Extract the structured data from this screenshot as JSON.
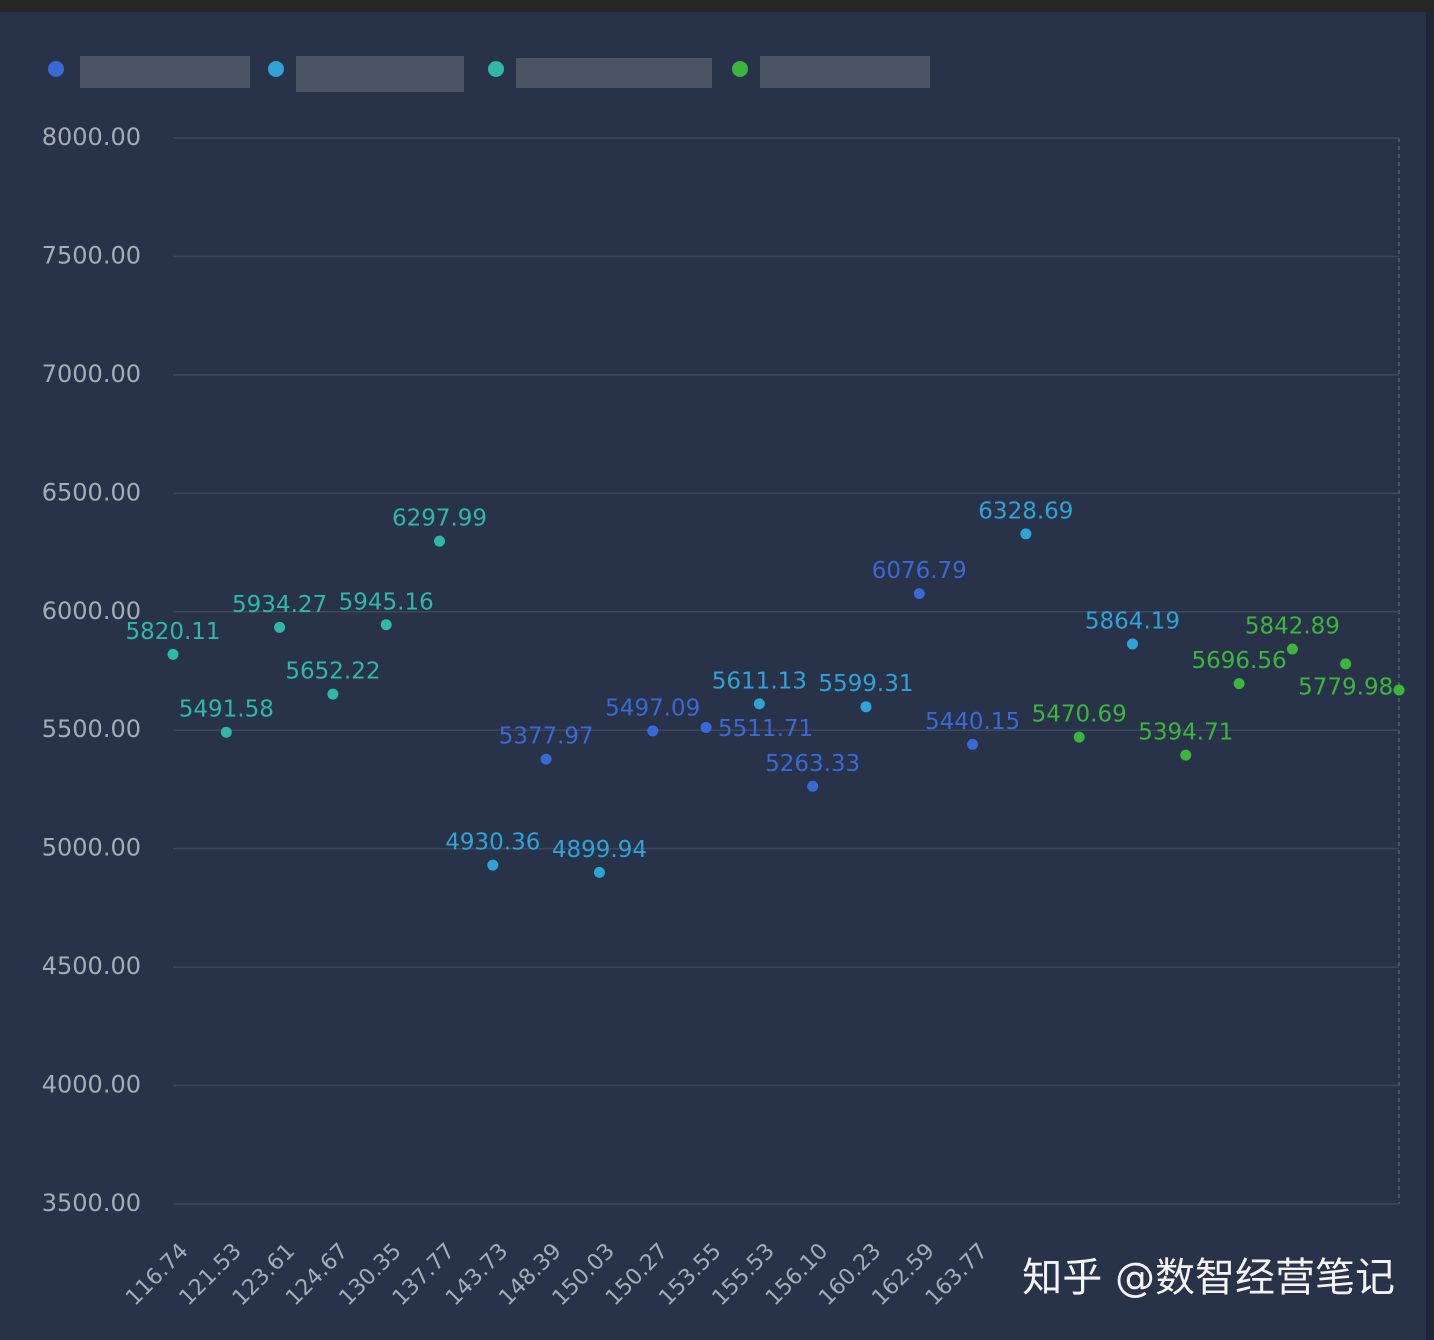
{
  "chart_data": {
    "type": "scatter",
    "categories": [
      "116.74",
      "121.53",
      "123.61",
      "124.67",
      "130.35",
      "137.77",
      "143.73",
      "148.39",
      "150.03",
      "150.27",
      "153.55",
      "155.53",
      "156.10",
      "160.23",
      "162.59",
      "163.77",
      null,
      null,
      null,
      null,
      null,
      null,
      null,
      null
    ],
    "series": [
      {
        "color": "#3a68d4",
        "values": [
          null,
          null,
          null,
          null,
          null,
          null,
          null,
          5377.97,
          null,
          5497.09,
          5511.71,
          null,
          5263.33,
          null,
          6076.79,
          5440.15,
          null,
          null,
          null,
          null,
          null,
          null,
          null,
          null
        ]
      },
      {
        "color": "#2fa3d6",
        "values": [
          null,
          null,
          null,
          null,
          null,
          null,
          4930.36,
          null,
          4899.94,
          null,
          null,
          5611.13,
          null,
          5599.31,
          null,
          null,
          6328.69,
          null,
          5864.19,
          null,
          null,
          null,
          null,
          null
        ]
      },
      {
        "color": "#2fb8a6",
        "values": [
          5820.11,
          5491.58,
          5934.27,
          5652.22,
          5945.16,
          6297.99,
          null,
          null,
          null,
          null,
          null,
          null,
          null,
          null,
          null,
          null,
          null,
          null,
          null,
          null,
          null,
          null,
          null,
          null
        ]
      },
      {
        "color": "#3cb53c",
        "values": [
          null,
          null,
          null,
          null,
          null,
          null,
          null,
          null,
          null,
          null,
          null,
          null,
          null,
          null,
          null,
          null,
          null,
          5470.69,
          null,
          5394.71,
          5696.56,
          5842.89,
          5779.98,
          5670
        ],
        "value_labels": [
          null,
          null,
          null,
          null,
          null,
          null,
          null,
          null,
          null,
          null,
          null,
          null,
          null,
          null,
          null,
          null,
          null,
          "5470.69",
          null,
          "5394.71",
          "5696.56",
          "5842.89",
          "5779.98",
          null
        ]
      }
    ],
    "ylim": [
      3500,
      8000
    ],
    "yticks": [
      {
        "value": 3500,
        "label": "3500.00"
      },
      {
        "value": 4000,
        "label": "4000.00"
      },
      {
        "value": 4500,
        "label": "4500.00"
      },
      {
        "value": 5000,
        "label": "5000.00"
      },
      {
        "value": 5500,
        "label": "5500.00"
      },
      {
        "value": 6000,
        "label": "6000.00"
      },
      {
        "value": 6500,
        "label": "6500.00"
      },
      {
        "value": 7000,
        "label": "7000.00"
      },
      {
        "value": 7500,
        "label": "7500.00"
      },
      {
        "value": 8000,
        "label": "8000.00"
      }
    ],
    "grid": true,
    "watermark": "知乎 @数智经营笔记"
  }
}
